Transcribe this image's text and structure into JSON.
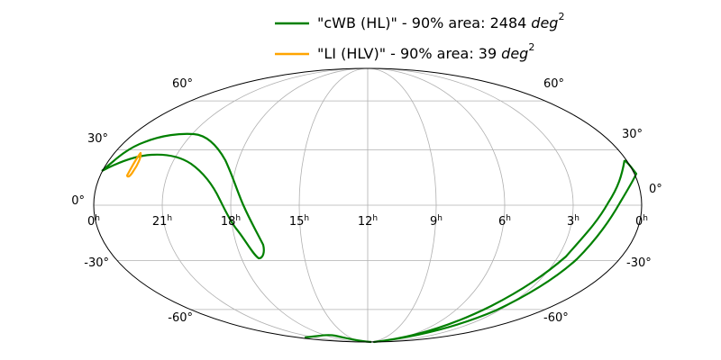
{
  "legend": [
    {
      "label": "\"cWB (HL)\" - 90% area: 2484",
      "unit": "deg",
      "power": "2",
      "color": "#008000"
    },
    {
      "label": "\"LI (HLV)\" - 90% area: 39",
      "unit": "deg",
      "power": "2",
      "color": "#ffa500"
    }
  ],
  "dec_labels": {
    "left": [
      "60°",
      "30°",
      "0°",
      "-30°",
      "-60°"
    ],
    "right": [
      "60°",
      "30°",
      "0°",
      "-30°",
      "-60°"
    ]
  },
  "ra_labels": [
    {
      "hour": "0",
      "unit": "h"
    },
    {
      "hour": "21",
      "unit": "h"
    },
    {
      "hour": "18",
      "unit": "h"
    },
    {
      "hour": "15",
      "unit": "h"
    },
    {
      "hour": "12",
      "unit": "h"
    },
    {
      "hour": "9",
      "unit": "h"
    },
    {
      "hour": "6",
      "unit": "h"
    },
    {
      "hour": "3",
      "unit": "h"
    },
    {
      "hour": "0",
      "unit": "h"
    }
  ]
}
